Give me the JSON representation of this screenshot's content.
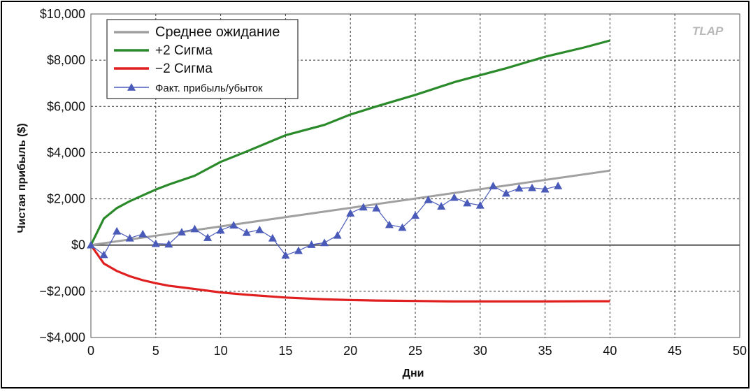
{
  "chart_data": {
    "type": "line",
    "xlabel": "Дни",
    "ylabel": "Чистая прибыль ($)",
    "watermark": "TLAP",
    "xlim": [
      0,
      50
    ],
    "ylim": [
      -4000,
      10000
    ],
    "x_ticks": [
      0,
      5,
      10,
      15,
      20,
      25,
      30,
      35,
      40,
      45,
      50
    ],
    "x_tick_labels": [
      "0",
      "5",
      "10",
      "15",
      "20",
      "25",
      "30",
      "35",
      "40",
      "45",
      "50"
    ],
    "y_ticks": [
      -4000,
      -2000,
      0,
      2000,
      4000,
      6000,
      8000,
      10000
    ],
    "y_tick_labels": [
      "−$4,000",
      "−$2,000",
      "$0",
      "$2,000",
      "$4,000",
      "$6,000",
      "$8,000",
      "$10,000"
    ],
    "grid": true,
    "legend_position": "top-left",
    "series": [
      {
        "name": "Среднее ожидание",
        "color": "#a0a0a0",
        "x": [
          0,
          40
        ],
        "y": [
          0,
          3220
        ]
      },
      {
        "name": "+2  Сигма",
        "color": "#2a8a2a",
        "x": [
          0,
          1,
          2,
          3,
          4,
          5,
          6,
          8,
          10,
          12,
          15,
          18,
          20,
          22,
          25,
          28,
          30,
          32,
          35,
          38,
          40
        ],
        "y": [
          0,
          1150,
          1600,
          1900,
          2150,
          2400,
          2620,
          3000,
          3600,
          4050,
          4750,
          5200,
          5650,
          6000,
          6500,
          7050,
          7350,
          7650,
          8150,
          8550,
          8850
        ]
      },
      {
        "name": "−2  Сигма",
        "color": "#e02020",
        "x": [
          0,
          1,
          2,
          3,
          4,
          5,
          6,
          8,
          10,
          12,
          15,
          18,
          20,
          22,
          25,
          28,
          30,
          32,
          35,
          38,
          40
        ],
        "y": [
          0,
          -800,
          -1120,
          -1350,
          -1520,
          -1650,
          -1760,
          -1900,
          -2050,
          -2150,
          -2270,
          -2350,
          -2380,
          -2400,
          -2420,
          -2440,
          -2440,
          -2440,
          -2440,
          -2430,
          -2430
        ]
      },
      {
        "name": "Факт. прибыль/убыток",
        "color": "#4a5ab8",
        "marker": "triangle",
        "x": [
          0,
          1,
          2,
          3,
          4,
          5,
          6,
          7,
          8,
          9,
          10,
          11,
          12,
          13,
          14,
          15,
          16,
          17,
          18,
          19,
          20,
          21,
          22,
          23,
          24,
          25,
          26,
          27,
          28,
          29,
          30,
          31,
          32,
          33,
          34,
          35,
          36
        ],
        "y": [
          0,
          -420,
          600,
          300,
          480,
          60,
          40,
          560,
          700,
          320,
          640,
          860,
          540,
          660,
          300,
          -440,
          -240,
          20,
          100,
          420,
          1380,
          1640,
          1600,
          880,
          760,
          1280,
          1960,
          1680,
          2060,
          1820,
          1720,
          2560,
          2240,
          2460,
          2480,
          2420,
          2560
        ]
      }
    ]
  }
}
